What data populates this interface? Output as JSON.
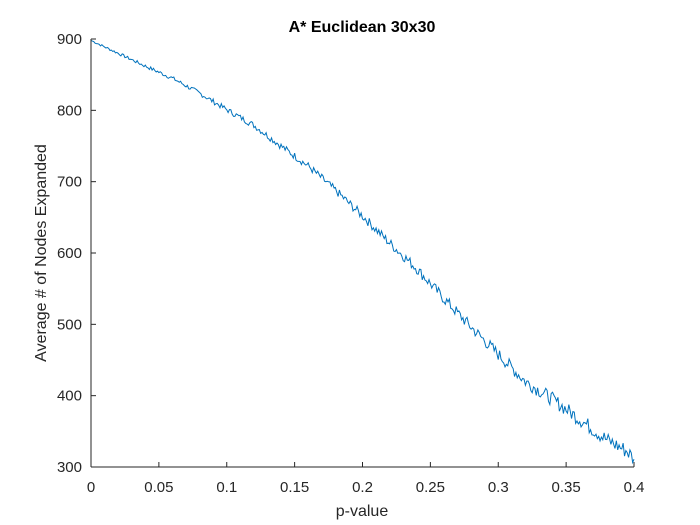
{
  "chart_data": {
    "type": "line",
    "title": "A* Euclidean 30x30",
    "xlabel": "p-value",
    "ylabel": "Average # of Nodes Expanded",
    "xlim": [
      0,
      0.4
    ],
    "ylim": [
      300,
      900
    ],
    "grid": false,
    "legend": "none",
    "x_ticks": [
      0,
      0.05,
      0.1,
      0.15,
      0.2,
      0.25,
      0.3,
      0.35,
      0.4
    ],
    "x_tick_labels": [
      "0",
      "0.05",
      "0.1",
      "0.15",
      "0.2",
      "0.25",
      "0.3",
      "0.35",
      "0.4"
    ],
    "y_ticks": [
      300,
      400,
      500,
      600,
      700,
      800,
      900
    ],
    "y_tick_labels": [
      "300",
      "400",
      "500",
      "600",
      "700",
      "800",
      "900"
    ],
    "series": [
      {
        "color": "#0072BD",
        "x": [
          0,
          0.02,
          0.04,
          0.06,
          0.08,
          0.1,
          0.12,
          0.14,
          0.16,
          0.18,
          0.2,
          0.22,
          0.24,
          0.26,
          0.28,
          0.3,
          0.32,
          0.34,
          0.36,
          0.38,
          0.395,
          0.4
        ],
        "y": [
          898,
          880,
          862,
          845,
          824,
          801,
          779,
          750,
          722,
          688,
          652,
          614,
          578,
          536,
          496,
          458,
          420,
          395,
          367,
          338,
          322,
          311
        ]
      }
    ]
  },
  "colors": {
    "axis": "#262626",
    "line": "#0072BD",
    "background": "#ffffff"
  }
}
